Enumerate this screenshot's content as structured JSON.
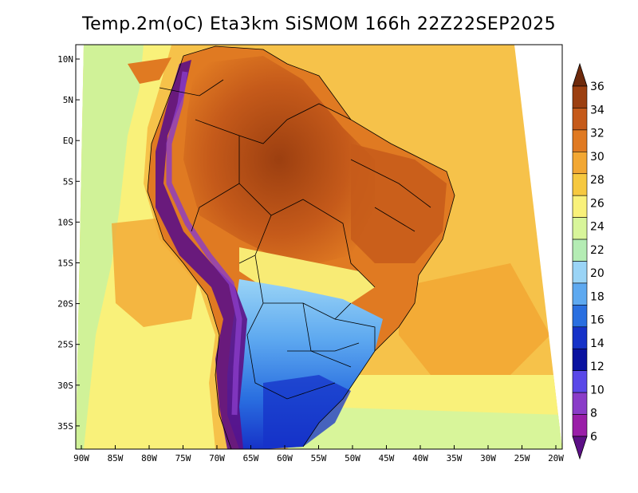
{
  "title": "Temp.2m(oC) Eta3km SiSMOM 166h 22Z22SEP2025",
  "colors": {
    "background": "#ffffff",
    "ocean_warm": "#f6c24a",
    "ocean_mid": "#f2a733",
    "ocean_cool": "#f9f17a",
    "cold_coast": "#c6f2a0",
    "land_hot": "#c55a1a",
    "land_very_hot": "#9c3f10",
    "land_warm": "#e3862c",
    "land_cool": "#4a94e6",
    "land_cold": "#0c2fc9",
    "andes": "#5a2fb6",
    "border": "#000000"
  },
  "axes": {
    "y_labels": [
      "10N",
      "5N",
      "EQ",
      "5S",
      "10S",
      "15S",
      "20S",
      "25S",
      "30S",
      "35S"
    ],
    "x_labels": [
      "90W",
      "85W",
      "80W",
      "75W",
      "70W",
      "65W",
      "60W",
      "55W",
      "50W",
      "45W",
      "40W",
      "35W",
      "30W",
      "25W",
      "20W"
    ]
  },
  "colorbar": {
    "labels": [
      "36",
      "34",
      "32",
      "30",
      "28",
      "26",
      "24",
      "22",
      "20",
      "18",
      "16",
      "14",
      "12",
      "10",
      "8",
      "6"
    ],
    "colors": [
      "#6e2a0c",
      "#9c3f10",
      "#c55a1a",
      "#e07a22",
      "#f2a733",
      "#f6c83f",
      "#f9f17a",
      "#d8f59a",
      "#b4ecb4",
      "#9ad4f6",
      "#5ea9f0",
      "#2a6fe0",
      "#1632c8",
      "#0a12a0",
      "#5a48e8",
      "#8a3cc8",
      "#9a1ea8",
      "#5c0f86"
    ]
  }
}
